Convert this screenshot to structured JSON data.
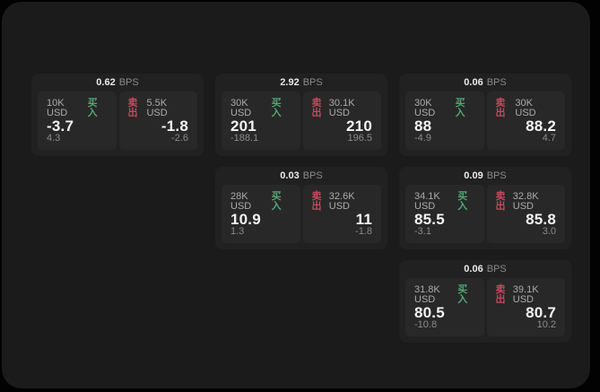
{
  "colors": {
    "background": "#020202",
    "surface": "#1b1b1b",
    "card": "#212121",
    "panel": "#282828",
    "buy": "#4fa873",
    "sell": "#c24a5e"
  },
  "cards": [
    {
      "bps_value": "0.62",
      "bps_unit": "BPS",
      "buy": {
        "amount": "10K USD",
        "side_label": "买入",
        "value": "-3.7",
        "sub_value": "4.3"
      },
      "sell": {
        "side_label": "卖出",
        "amount": "5.5K USD",
        "value": "-1.8",
        "sub_value": "-2.6"
      }
    },
    {
      "bps_value": "2.92",
      "bps_unit": "BPS",
      "buy": {
        "amount": "30K USD",
        "side_label": "买入",
        "value": "201",
        "sub_value": "-188.1"
      },
      "sell": {
        "side_label": "卖出",
        "amount": "30.1K USD",
        "value": "210",
        "sub_value": "196.5"
      }
    },
    {
      "bps_value": "0.06",
      "bps_unit": "BPS",
      "buy": {
        "amount": "30K USD",
        "side_label": "买入",
        "value": "88",
        "sub_value": "-4.9"
      },
      "sell": {
        "side_label": "卖出",
        "amount": "30K USD",
        "value": "88.2",
        "sub_value": "4.7"
      }
    },
    {
      "bps_value": "0.03",
      "bps_unit": "BPS",
      "buy": {
        "amount": "28K USD",
        "side_label": "买入",
        "value": "10.9",
        "sub_value": "1.3"
      },
      "sell": {
        "side_label": "卖出",
        "amount": "32.6K USD",
        "value": "11",
        "sub_value": "-1.8"
      }
    },
    {
      "bps_value": "0.09",
      "bps_unit": "BPS",
      "buy": {
        "amount": "34.1K USD",
        "side_label": "买入",
        "value": "85.5",
        "sub_value": "-3.1"
      },
      "sell": {
        "side_label": "卖出",
        "amount": "32.8K USD",
        "value": "85.8",
        "sub_value": "3.0"
      }
    },
    {
      "bps_value": "0.06",
      "bps_unit": "BPS",
      "buy": {
        "amount": "31.8K USD",
        "side_label": "买入",
        "value": "80.5",
        "sub_value": "-10.8"
      },
      "sell": {
        "side_label": "卖出",
        "amount": "39.1K USD",
        "value": "80.7",
        "sub_value": "10.2"
      }
    }
  ]
}
